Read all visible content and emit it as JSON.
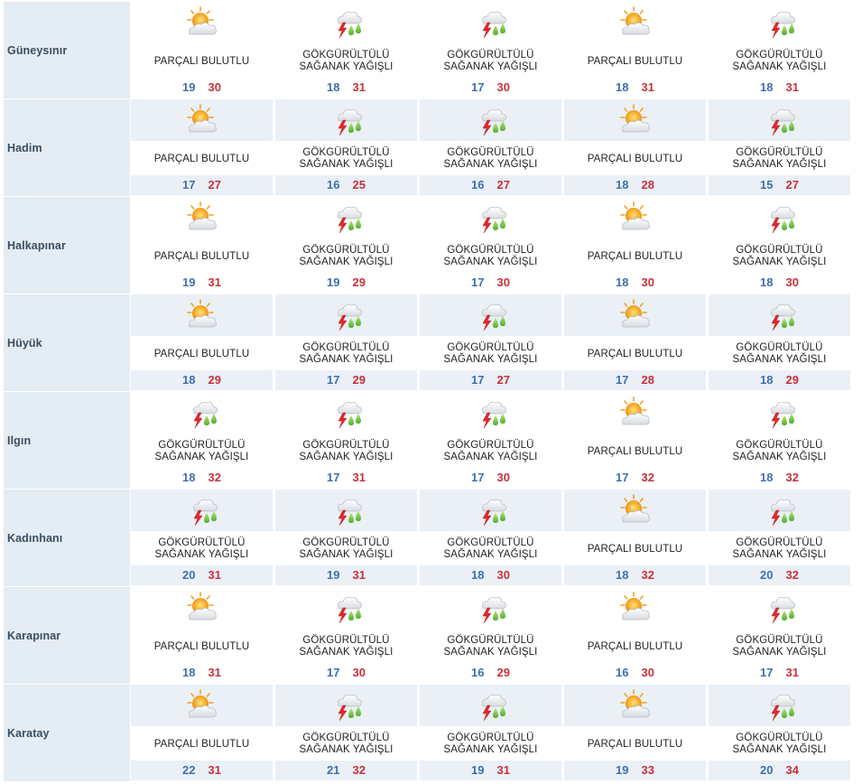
{
  "conditions": {
    "partly": "PARÇALI BULUTLU",
    "storm_l1": "GÖKGÜRÜLTÜLÜ",
    "storm_l2": "SAĞANAK YAĞIŞLI"
  },
  "icons": {
    "partly": "partly-cloudy-icon",
    "storm": "thunderstorm-rain-icon"
  },
  "colors": {
    "city_bg": "#e4ecf4",
    "band_bg": "#eaf0f6",
    "city_text": "#3a4e5f",
    "temp_min": "#3e6fae",
    "temp_max": "#c8313a"
  },
  "rows": [
    {
      "city": "Güneysınır",
      "days": [
        {
          "c": "partly",
          "min": "19",
          "max": "30"
        },
        {
          "c": "storm",
          "min": "18",
          "max": "31"
        },
        {
          "c": "storm",
          "min": "17",
          "max": "30"
        },
        {
          "c": "partly",
          "min": "18",
          "max": "31"
        },
        {
          "c": "storm",
          "min": "18",
          "max": "31"
        }
      ]
    },
    {
      "city": "Hadim",
      "days": [
        {
          "c": "partly",
          "min": "17",
          "max": "27"
        },
        {
          "c": "storm",
          "min": "16",
          "max": "25"
        },
        {
          "c": "storm",
          "min": "16",
          "max": "27"
        },
        {
          "c": "partly",
          "min": "18",
          "max": "28"
        },
        {
          "c": "storm",
          "min": "15",
          "max": "27"
        }
      ]
    },
    {
      "city": "Halkapınar",
      "days": [
        {
          "c": "partly",
          "min": "19",
          "max": "31"
        },
        {
          "c": "storm",
          "min": "19",
          "max": "29"
        },
        {
          "c": "storm",
          "min": "17",
          "max": "30"
        },
        {
          "c": "partly",
          "min": "18",
          "max": "30"
        },
        {
          "c": "storm",
          "min": "18",
          "max": "30"
        }
      ]
    },
    {
      "city": "Hüyük",
      "days": [
        {
          "c": "partly",
          "min": "18",
          "max": "29"
        },
        {
          "c": "storm",
          "min": "17",
          "max": "29"
        },
        {
          "c": "storm",
          "min": "17",
          "max": "27"
        },
        {
          "c": "partly",
          "min": "17",
          "max": "28"
        },
        {
          "c": "storm",
          "min": "18",
          "max": "29"
        }
      ]
    },
    {
      "city": "Ilgın",
      "days": [
        {
          "c": "storm",
          "min": "18",
          "max": "32"
        },
        {
          "c": "storm",
          "min": "17",
          "max": "31"
        },
        {
          "c": "storm",
          "min": "17",
          "max": "30"
        },
        {
          "c": "partly",
          "min": "17",
          "max": "32"
        },
        {
          "c": "storm",
          "min": "18",
          "max": "32"
        }
      ]
    },
    {
      "city": "Kadınhanı",
      "days": [
        {
          "c": "storm",
          "min": "20",
          "max": "31"
        },
        {
          "c": "storm",
          "min": "19",
          "max": "31"
        },
        {
          "c": "storm",
          "min": "18",
          "max": "30"
        },
        {
          "c": "partly",
          "min": "18",
          "max": "32"
        },
        {
          "c": "storm",
          "min": "20",
          "max": "32"
        }
      ]
    },
    {
      "city": "Karapınar",
      "days": [
        {
          "c": "partly",
          "min": "18",
          "max": "31"
        },
        {
          "c": "storm",
          "min": "17",
          "max": "30"
        },
        {
          "c": "storm",
          "min": "16",
          "max": "29"
        },
        {
          "c": "partly",
          "min": "16",
          "max": "30"
        },
        {
          "c": "storm",
          "min": "17",
          "max": "31"
        }
      ]
    },
    {
      "city": "Karatay",
      "days": [
        {
          "c": "partly",
          "min": "22",
          "max": "31"
        },
        {
          "c": "storm",
          "min": "21",
          "max": "32"
        },
        {
          "c": "storm",
          "min": "19",
          "max": "31"
        },
        {
          "c": "partly",
          "min": "19",
          "max": "33"
        },
        {
          "c": "storm",
          "min": "20",
          "max": "34"
        }
      ]
    }
  ]
}
